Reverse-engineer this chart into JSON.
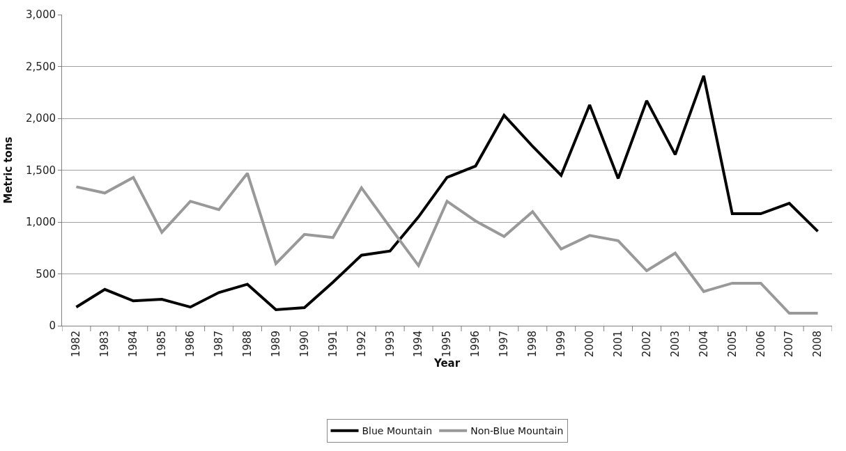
{
  "chart_data": {
    "type": "line",
    "xlabel": "Year",
    "ylabel": "Metric tons",
    "categories": [
      "1982",
      "1983",
      "1984",
      "1985",
      "1986",
      "1987",
      "1988",
      "1989",
      "1990",
      "1991",
      "1992",
      "1993",
      "1994",
      "1995",
      "1996",
      "1997",
      "1998",
      "1999",
      "2000",
      "2001",
      "2002",
      "2003",
      "2004",
      "2005",
      "2006",
      "2007",
      "2008"
    ],
    "series": [
      {
        "name": "Blue Mountain",
        "color": "#000000",
        "values": [
          180,
          350,
          240,
          255,
          180,
          320,
          400,
          155,
          175,
          420,
          680,
          720,
          1050,
          1430,
          1540,
          2030,
          1730,
          1450,
          2130,
          1420,
          2170,
          1650,
          2410,
          1080,
          1080,
          1180,
          910
        ]
      },
      {
        "name": "Non-Blue Mountain",
        "color": "#999999",
        "values": [
          1340,
          1280,
          1430,
          900,
          1200,
          1120,
          1470,
          600,
          880,
          850,
          1330,
          950,
          580,
          1200,
          1010,
          860,
          1100,
          740,
          870,
          820,
          530,
          700,
          330,
          410,
          410,
          120,
          120
        ]
      }
    ],
    "ylim": [
      0,
      3000
    ],
    "yticks": [
      {
        "value": 0,
        "label": "0"
      },
      {
        "value": 500,
        "label": "500"
      },
      {
        "value": 1000,
        "label": "1,000"
      },
      {
        "value": 1500,
        "label": "1,500"
      },
      {
        "value": 2000,
        "label": "2,000"
      },
      {
        "value": 2500,
        "label": "2,500"
      },
      {
        "value": 3000,
        "label": "3,000"
      }
    ],
    "grid": "y",
    "legend": "bottom",
    "marker": "none",
    "line_style": "solid"
  }
}
